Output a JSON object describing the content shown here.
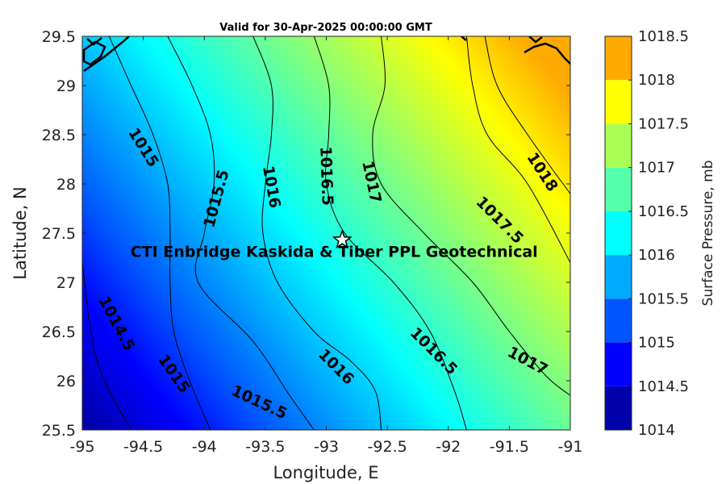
{
  "chart_data": {
    "type": "heatmap",
    "title": "Valid for 30-Apr-2025 00:00:00 GMT",
    "xlabel": "Longitude, E",
    "ylabel": "Latitude, N",
    "xlim": [
      -95,
      -91
    ],
    "ylim": [
      25.5,
      29.5
    ],
    "xticks": [
      "-95",
      "-94.5",
      "-94",
      "-93.5",
      "-93",
      "-92.5",
      "-92",
      "-91.5",
      "-91"
    ],
    "yticks": [
      "25.5",
      "26",
      "26.5",
      "27",
      "27.5",
      "28",
      "28.5",
      "29",
      "29.5"
    ],
    "colorbar": {
      "label": "Surface Pressure, mb",
      "levels": [
        1014,
        1014.5,
        1015,
        1015.5,
        1016,
        1016.5,
        1017,
        1017.5,
        1018,
        1018.5
      ],
      "tick_labels": [
        "1014",
        "1014.5",
        "1015",
        "1015.5",
        "1016",
        "1016.5",
        "1017",
        "1017.5",
        "1018",
        "1018.5"
      ],
      "colors": [
        "#0000aa",
        "#0000ff",
        "#0055ff",
        "#00aaff",
        "#00ffff",
        "#55ffaa",
        "#aaff55",
        "#ffff00",
        "#ffaa00",
        "#ff5500"
      ]
    },
    "contour_lines": [
      {
        "level": "1014.5",
        "lon": [
          -95.0,
          -94.88,
          -94.6
        ],
        "lat": [
          27.2,
          26.2,
          25.5
        ]
      },
      {
        "level": "1015",
        "lon": [
          -94.78,
          -94.6,
          -94.42,
          -94.3,
          -94.28,
          -94.28,
          -94.25,
          -94.12,
          -93.95
        ],
        "lat": [
          29.5,
          29.0,
          28.5,
          28.0,
          27.5,
          27.0,
          26.5,
          26.0,
          25.5
        ]
      },
      {
        "level": "1015.5",
        "lon": [
          -94.3,
          -94.1,
          -93.95,
          -93.92,
          -94.0,
          -94.05,
          -93.6,
          -93.3,
          -93.1
        ],
        "lat": [
          29.5,
          29.0,
          28.5,
          28.0,
          27.5,
          27.0,
          26.4,
          25.85,
          25.5
        ]
      },
      {
        "level": "1016",
        "lon": [
          -93.6,
          -93.45,
          -93.45,
          -93.5,
          -93.52,
          -93.4,
          -93.1,
          -92.8,
          -92.6,
          -92.55
        ],
        "lat": [
          29.5,
          29.0,
          28.5,
          28.0,
          27.5,
          27.0,
          26.5,
          26.2,
          25.9,
          25.5
        ]
      },
      {
        "level": "1016.5",
        "lon": [
          -93.1,
          -92.98,
          -92.98,
          -93.0,
          -92.85,
          -92.45,
          -92.15,
          -91.95,
          -91.85
        ],
        "lat": [
          29.5,
          29.0,
          28.5,
          28.0,
          27.5,
          27.0,
          26.5,
          25.9,
          25.5
        ]
      },
      {
        "level": "1017",
        "lon": [
          -92.55,
          -92.52,
          -92.62,
          -92.55,
          -92.2,
          -91.8,
          -91.5,
          -91.2,
          -91.0
        ],
        "lat": [
          29.5,
          29.0,
          28.5,
          28.0,
          27.5,
          27.0,
          26.5,
          26.05,
          25.85
        ]
      },
      {
        "level": "1017.5",
        "lon": [
          -91.85,
          -91.8,
          -91.68,
          -91.35,
          -91.0
        ],
        "lat": [
          29.5,
          29.0,
          28.5,
          28.0,
          27.2
        ]
      },
      {
        "level": "1018",
        "lon": [
          -91.7,
          -91.6,
          -91.35,
          -91.0
        ],
        "lat": [
          29.5,
          29.0,
          28.5,
          27.9
        ]
      }
    ],
    "contour_labels": [
      {
        "text": "1015",
        "lon": -94.5,
        "lat": 28.37,
        "rotate": 58
      },
      {
        "text": "1015.5",
        "lon": -93.9,
        "lat": 27.85,
        "rotate": -75
      },
      {
        "text": "1016",
        "lon": -93.45,
        "lat": 27.97,
        "rotate": 80
      },
      {
        "text": "1016.5",
        "lon": -93.0,
        "lat": 28.08,
        "rotate": 88
      },
      {
        "text": "1017",
        "lon": -92.63,
        "lat": 28.02,
        "rotate": 78
      },
      {
        "text": "1018",
        "lon": -91.23,
        "lat": 28.12,
        "rotate": 57
      },
      {
        "text": "1017.5",
        "lon": -91.58,
        "lat": 27.63,
        "rotate": 45
      },
      {
        "text": "1014.5",
        "lon": -94.72,
        "lat": 26.58,
        "rotate": 62
      },
      {
        "text": "1015",
        "lon": -94.25,
        "lat": 26.07,
        "rotate": 55
      },
      {
        "text": "1015.5",
        "lon": -93.55,
        "lat": 25.78,
        "rotate": 25
      },
      {
        "text": "1016",
        "lon": -92.92,
        "lat": 26.14,
        "rotate": 45
      },
      {
        "text": "1016.5",
        "lon": -92.12,
        "lat": 26.3,
        "rotate": 45
      },
      {
        "text": "1017",
        "lon": -91.35,
        "lat": 26.2,
        "rotate": 28
      }
    ],
    "site": {
      "name": "CTI Enbridge  Kaskida & Tiber PPL Geotechnical",
      "lon": -92.87,
      "lat": 27.43,
      "marker": "star"
    }
  }
}
